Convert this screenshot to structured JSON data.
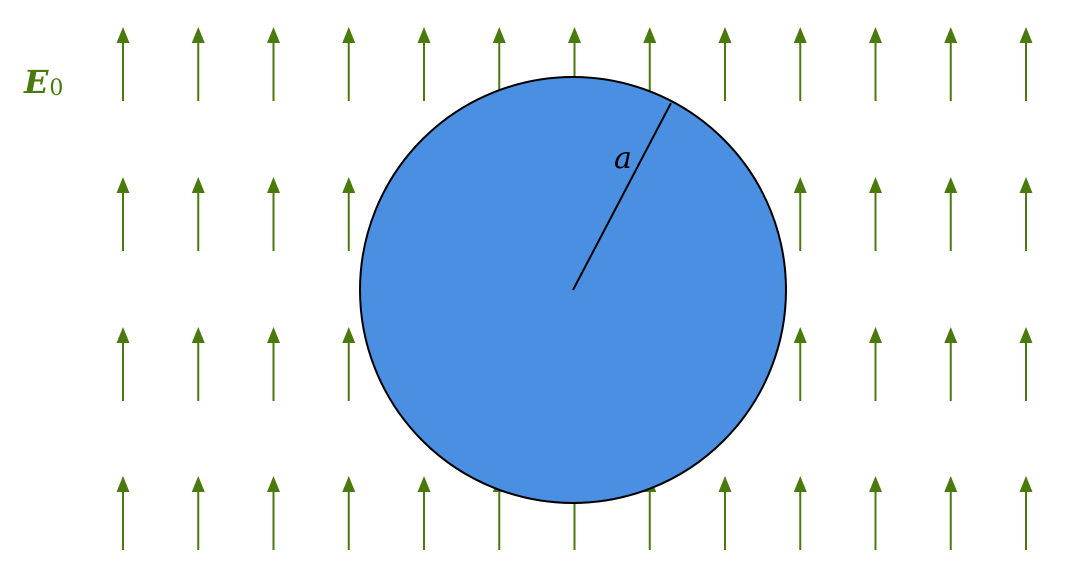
{
  "field": {
    "symbol": "E",
    "subscript": "0",
    "color": "#4a7a0e",
    "direction": "up",
    "arrow_columns": 13,
    "arrow_rows": 4
  },
  "sphere": {
    "fill_color": "#4a8fe2",
    "stroke_color": "#000000",
    "radius_label": "a"
  }
}
